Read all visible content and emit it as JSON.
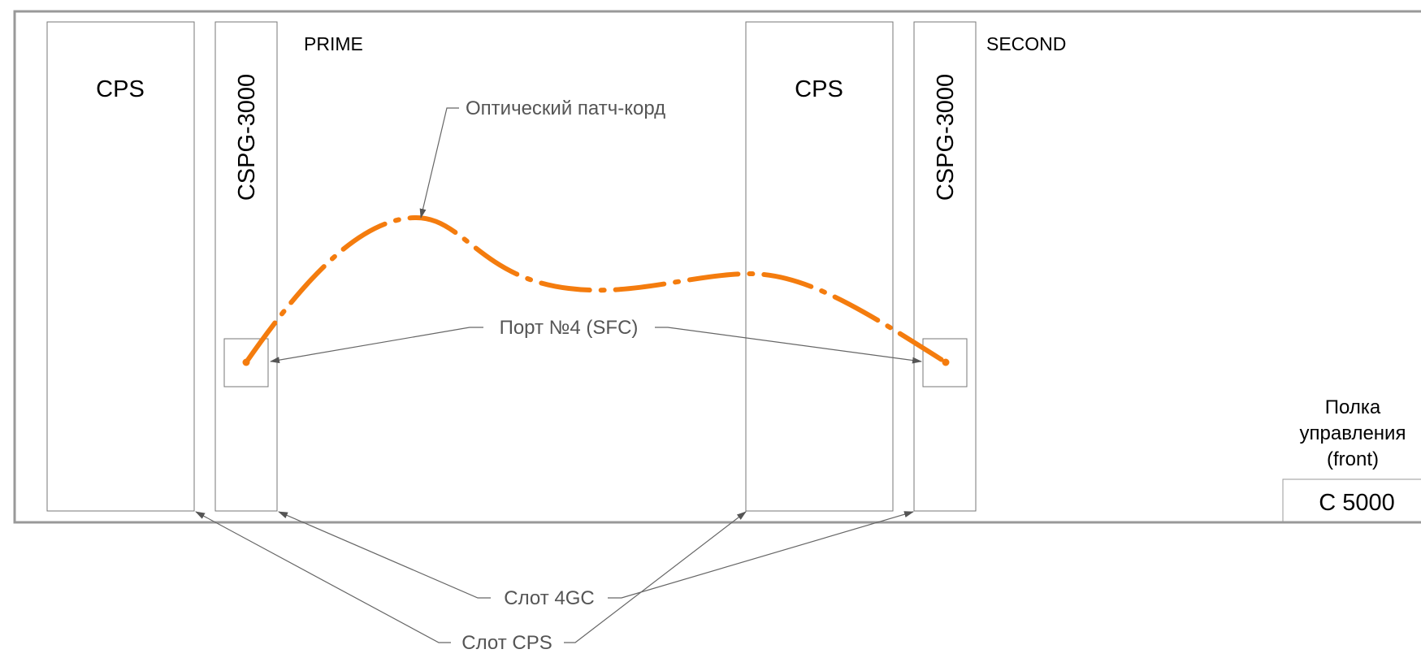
{
  "modules": {
    "cps_left": "CPS",
    "cspg_left": "CSPG-3000",
    "cps_right": "CPS",
    "cspg_right": "CSPG-3000"
  },
  "labels": {
    "prime": "PRIME",
    "second": "SECOND",
    "shelf_line1": "Полка",
    "shelf_line2": "управления",
    "shelf_line3": "(front)",
    "shelf_model": "C 5000"
  },
  "callouts": {
    "patch_cord": "Оптический патч-корд",
    "port": "Порт №4 (SFC)",
    "slot_4gc": "Слот 4GC",
    "slot_cps": "Слот CPS"
  },
  "colors": {
    "frame": "#999999",
    "outline": "#777777",
    "leader": "#666666",
    "cable": "#f47c0e"
  }
}
